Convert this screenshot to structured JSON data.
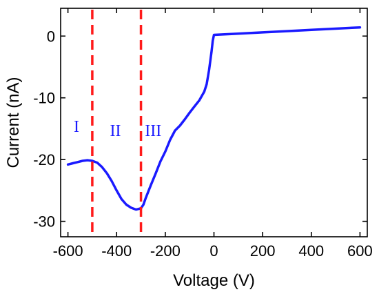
{
  "chart_data": {
    "type": "line",
    "title": "",
    "xlabel": "Voltage (V)",
    "ylabel": "Current (nA)",
    "xlim": [
      -630,
      630
    ],
    "ylim": [
      -32.5,
      4.5
    ],
    "xticks": [
      -600,
      -400,
      -200,
      0,
      200,
      400,
      600
    ],
    "yticks": [
      0,
      -10,
      -20,
      -30
    ],
    "xtick_labels": [
      "-600",
      "-400",
      "-200",
      "0",
      "200",
      "400",
      "600"
    ],
    "ytick_labels": [
      "0",
      "-10",
      "-20",
      "-30"
    ],
    "grid": false,
    "legend": "none",
    "series": [
      {
        "color": "#1a1aff",
        "x": [
          -600,
          -580,
          -560,
          -540,
          -520,
          -500,
          -480,
          -460,
          -440,
          -420,
          -400,
          -380,
          -360,
          -340,
          -320,
          -300,
          -290,
          -280,
          -260,
          -240,
          -220,
          -200,
          -180,
          -160,
          -140,
          -120,
          -100,
          -80,
          -60,
          -40,
          -30,
          -20,
          -10,
          -5,
          0,
          50,
          100,
          200,
          300,
          400,
          500,
          600
        ],
        "y": [
          -20.8,
          -20.6,
          -20.4,
          -20.2,
          -20.1,
          -20.2,
          -20.5,
          -21.2,
          -22.2,
          -23.5,
          -25.0,
          -26.4,
          -27.3,
          -27.8,
          -28.1,
          -27.9,
          -27.3,
          -26.2,
          -24.2,
          -22.3,
          -20.3,
          -18.7,
          -16.8,
          -15.3,
          -14.5,
          -13.5,
          -12.4,
          -11.4,
          -10.4,
          -9.0,
          -7.8,
          -5.5,
          -2.5,
          -0.8,
          0.2,
          0.3,
          0.4,
          0.6,
          0.8,
          1.0,
          1.2,
          1.4
        ]
      }
    ],
    "annotations": {
      "vlines": [
        {
          "x": -500,
          "color": "#ff1a1a",
          "style": "dashed"
        },
        {
          "x": -300,
          "color": "#ff1a1a",
          "style": "dashed"
        }
      ],
      "region_labels": [
        {
          "text": "I",
          "x": -565,
          "y": -15.5
        },
        {
          "text": "II",
          "x": -405,
          "y": -16.2
        },
        {
          "text": "III",
          "x": -250,
          "y": -16.2
        }
      ]
    }
  }
}
